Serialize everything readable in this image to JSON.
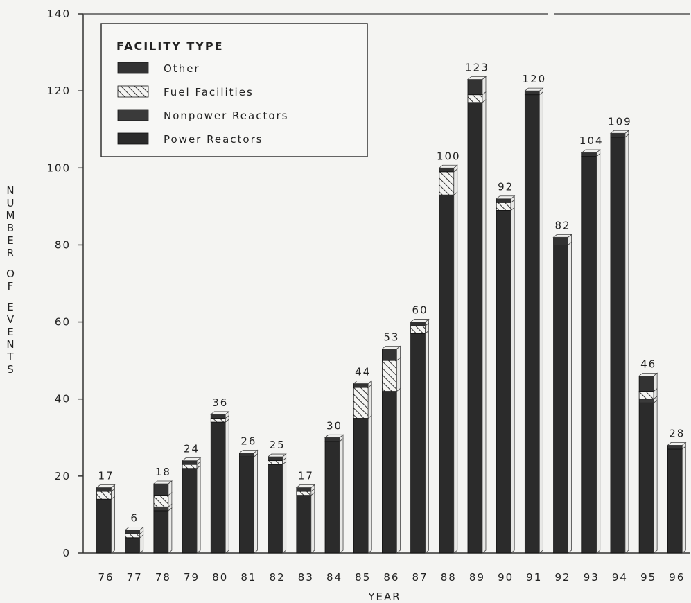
{
  "chart_data": {
    "type": "bar",
    "stacked": true,
    "xlabel": "YEAR",
    "ylabel": "NUMBER OF EVENTS",
    "ylim": [
      0,
      140
    ],
    "yticks": [
      0,
      20,
      40,
      60,
      80,
      100,
      120,
      140
    ],
    "categories": [
      "76",
      "77",
      "78",
      "79",
      "80",
      "81",
      "82",
      "83",
      "84",
      "85",
      "86",
      "87",
      "88",
      "89",
      "90",
      "91",
      "92",
      "93",
      "94",
      "95",
      "96"
    ],
    "series": [
      {
        "name": "Power Reactors",
        "values": [
          14,
          4,
          11,
          22,
          34,
          25,
          23,
          15,
          29,
          35,
          42,
          57,
          93,
          117,
          89,
          119,
          80,
          103,
          108,
          39,
          27
        ]
      },
      {
        "name": "Nonpower Reactors",
        "values": [
          0,
          0,
          1,
          0,
          0,
          0,
          0,
          0,
          0,
          0,
          0,
          0,
          0,
          0,
          0,
          0,
          0,
          0,
          0,
          1,
          0
        ]
      },
      {
        "name": "Fuel Facilities",
        "values": [
          2,
          1,
          3,
          1,
          1,
          0,
          1,
          1,
          0,
          8,
          8,
          2,
          6,
          2,
          2,
          0,
          0,
          0,
          0,
          2,
          0
        ]
      },
      {
        "name": "Other",
        "values": [
          1,
          1,
          3,
          1,
          1,
          1,
          1,
          1,
          1,
          1,
          3,
          1,
          1,
          4,
          1,
          1,
          2,
          1,
          1,
          4,
          1
        ]
      }
    ],
    "totals": [
      17,
      6,
      18,
      24,
      36,
      26,
      25,
      17,
      30,
      44,
      53,
      60,
      100,
      123,
      92,
      120,
      82,
      104,
      109,
      46,
      28
    ],
    "legend": {
      "title": "FACILITY TYPE",
      "placement": "top-left",
      "entries": [
        "Other",
        "Fuel Facilities",
        "Nonpower Reactors",
        "Power Reactors"
      ]
    },
    "colors": {
      "Power Reactors": "#2b2b2b",
      "Nonpower Reactors": "#3a3a3a",
      "Fuel Facilities": "hatched",
      "Other": "#333333"
    },
    "grid": false
  }
}
